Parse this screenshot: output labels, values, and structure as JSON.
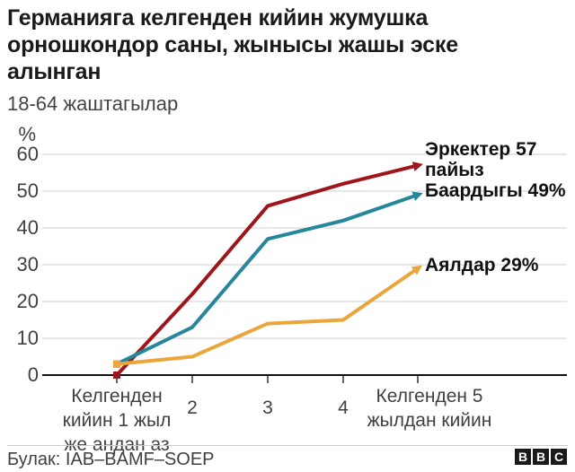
{
  "header": {
    "title": "Германияга келгенден кийин жумушка орношкондор саны, жынысы жашы эске алынган",
    "subtitle": "18-64 жаштагылар"
  },
  "chart_data": {
    "type": "line",
    "title": "Германияга келгенден кийин жумушка орношкондор саны, жынысы жашы эске алынган",
    "subtitle": "18-64 жаштагылар",
    "y_unit": "%",
    "ylim": [
      0,
      60
    ],
    "yticks": [
      0,
      10,
      20,
      30,
      40,
      50,
      60
    ],
    "grid": "horizontal",
    "x_categories": [
      "Келгенден\nкийин 1 жыл\nже андан аз",
      "2",
      "3",
      "4",
      "Келгенден 5\nжылдан кийин"
    ],
    "legend_position": "right-of-line-ends",
    "series": [
      {
        "key": "men",
        "name": "Эркектер",
        "label": "Эркектер 57\nпайыз",
        "end_value_text": "57 пайыз",
        "color": "#A0151B",
        "values": [
          0,
          22,
          46,
          52,
          57
        ]
      },
      {
        "key": "all",
        "name": "Баардыгы",
        "label": "Баардыгы 49%",
        "end_value_text": "49%",
        "color": "#26879B",
        "values": [
          3,
          13,
          37,
          42,
          49
        ]
      },
      {
        "key": "women",
        "name": "Аялдар",
        "label": "Аялдар 29%",
        "end_value_text": "29%",
        "color": "#EBA63B",
        "values": [
          3,
          5,
          14,
          15,
          29
        ]
      }
    ]
  },
  "footer": {
    "source": "Булак: IAB–BAMF–SOEP",
    "logo_letters": [
      "B",
      "B",
      "C"
    ]
  }
}
